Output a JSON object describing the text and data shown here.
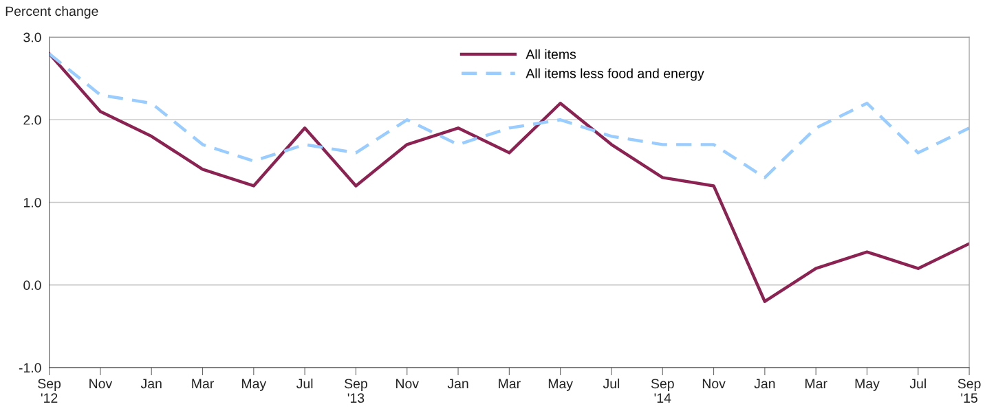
{
  "chart_data": {
    "type": "line",
    "ylabel": "Percent change",
    "categories": [
      "Sep\n'12",
      "Nov",
      "Jan",
      "Mar",
      "May",
      "Jul",
      "Sep\n'13",
      "Nov",
      "Jan",
      "Mar",
      "May",
      "Jul",
      "Sep\n'14",
      "Nov",
      "Jan",
      "Mar",
      "May",
      "Jul",
      "Sep\n'15"
    ],
    "series": [
      {
        "name": "All items",
        "color": "#8b2252",
        "line_style": "solid",
        "values": [
          2.8,
          2.1,
          1.8,
          1.4,
          1.2,
          1.9,
          1.2,
          1.7,
          1.9,
          1.6,
          2.2,
          1.7,
          1.3,
          1.2,
          -0.2,
          0.2,
          0.4,
          0.2,
          0.5
        ]
      },
      {
        "name": "All items less food and energy",
        "color": "#99ccff",
        "line_style": "dashed",
        "values": [
          2.8,
          2.3,
          2.2,
          1.7,
          1.5,
          1.7,
          1.6,
          2.0,
          1.7,
          1.9,
          2.0,
          1.8,
          1.7,
          1.7,
          1.3,
          1.9,
          2.2,
          1.6,
          1.9
        ]
      }
    ],
    "ylim": [
      -1.0,
      3.0
    ],
    "yticks": [
      {
        "value": -1.0,
        "label": "-1.0"
      },
      {
        "value": 0.0,
        "label": "0.0"
      },
      {
        "value": 1.0,
        "label": "1.0"
      },
      {
        "value": 2.0,
        "label": "2.0"
      },
      {
        "value": 3.0,
        "label": "3.0"
      }
    ],
    "grid": "y",
    "legend": "top",
    "marker": "none"
  }
}
